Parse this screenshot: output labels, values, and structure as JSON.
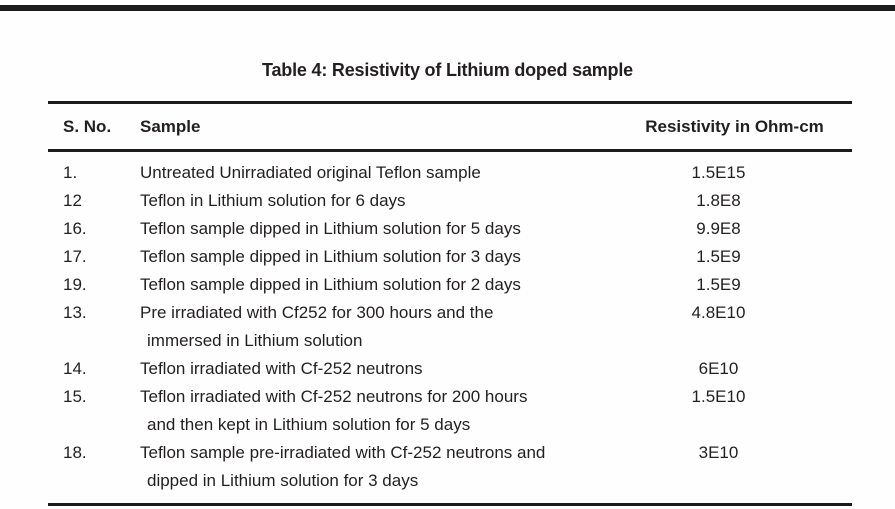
{
  "title": "Table 4: Resistivity of Lithium doped sample",
  "table": {
    "headers": {
      "s_no": "S. No.",
      "sample": "Sample",
      "resistivity": "Resistivity in Ohm-cm"
    },
    "rows": [
      {
        "s_no": "1.",
        "sample_lines": [
          "Untreated Unirradiated original Teflon sample"
        ],
        "resistivity": "1.5E15"
      },
      {
        "s_no": "12",
        "sample_lines": [
          "Teflon in Lithium solution for 6 days"
        ],
        "resistivity": "1.8E8"
      },
      {
        "s_no": "16.",
        "sample_lines": [
          "Teflon sample dipped in Lithium solution for 5 days"
        ],
        "resistivity": "9.9E8"
      },
      {
        "s_no": "17.",
        "sample_lines": [
          "Teflon sample dipped in Lithium solution for 3 days"
        ],
        "resistivity": "1.5E9"
      },
      {
        "s_no": "19.",
        "sample_lines": [
          "Teflon sample dipped in Lithium solution for 2 days"
        ],
        "resistivity": "1.5E9"
      },
      {
        "s_no": "13.",
        "sample_lines": [
          "Pre irradiated with Cf252 for 300 hours and the",
          "immersed in Lithium solution"
        ],
        "resistivity": "4.8E10"
      },
      {
        "s_no": "14.",
        "sample_lines": [
          "Teflon irradiated with Cf-252 neutrons"
        ],
        "resistivity": "6E10"
      },
      {
        "s_no": "15.",
        "sample_lines": [
          "Teflon irradiated with Cf-252 neutrons for 200 hours",
          "and then kept in Lithium solution for 5 days"
        ],
        "resistivity": "1.5E10"
      },
      {
        "s_no": "18.",
        "sample_lines": [
          "Teflon sample pre-irradiated with Cf-252 neutrons and",
          "dipped in Lithium solution for 3 days"
        ],
        "resistivity": "3E10"
      }
    ]
  },
  "colors": {
    "text": "#231f20",
    "rule": "#1c1c1c",
    "background": "#fefefe"
  }
}
